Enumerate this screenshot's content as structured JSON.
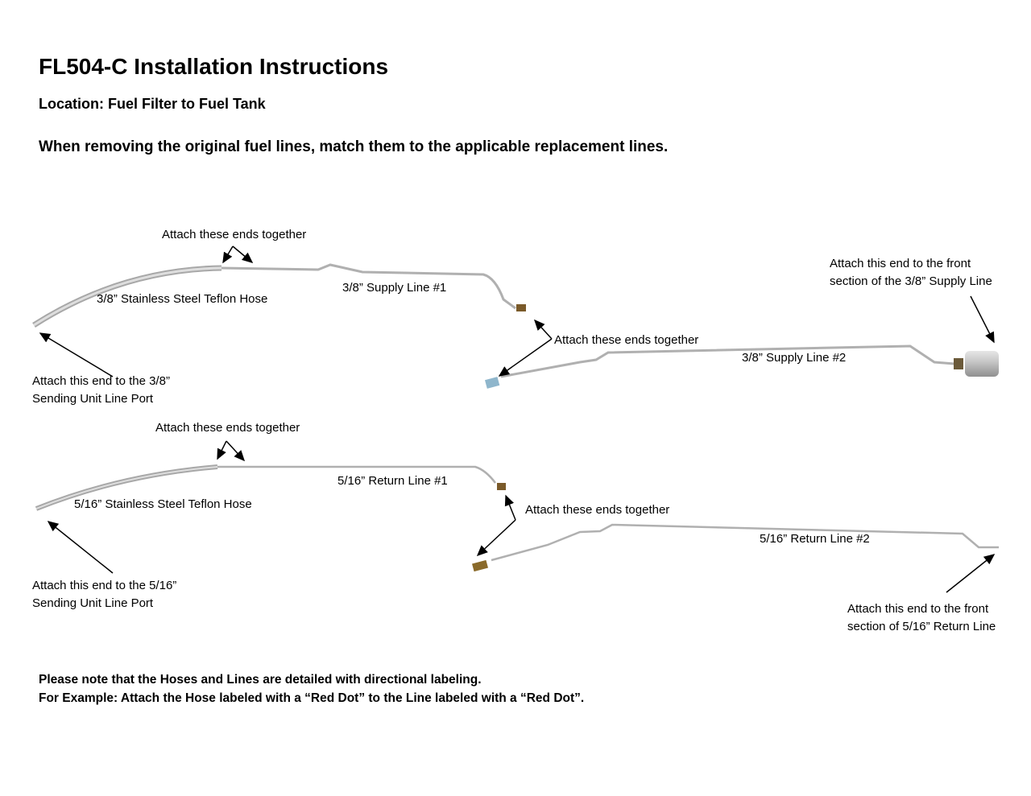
{
  "header": {
    "title": "FL504-C Installation Instructions",
    "location": "Location: Fuel Filter to Fuel Tank",
    "instruction": "When removing the original fuel lines, match them to the applicable replacement lines."
  },
  "supply": {
    "attach_together_1": "Attach these ends together",
    "hose_label": "3/8” Stainless Steel Teflon Hose",
    "line1_label": "3/8” Supply Line #1",
    "front_note": [
      "Attach this end to the front",
      "section of the 3/8” Supply Line"
    ],
    "attach_together_2": "Attach these ends together",
    "line2_label": "3/8” Supply Line #2",
    "port_note": [
      "Attach this end to the 3/8”",
      "Sending Unit Line Port"
    ]
  },
  "return": {
    "attach_together_1": "Attach these ends together",
    "line1_label": "5/16” Return Line #1",
    "hose_label": "5/16” Stainless Steel Teflon Hose",
    "attach_together_2": "Attach these ends together",
    "line2_label": "5/16” Return Line #2",
    "port_note": [
      "Attach this end to the 5/16”",
      "Sending Unit Line Port"
    ],
    "front_note": [
      "Attach this end to the front",
      "section of 5/16” Return Line"
    ]
  },
  "notes": [
    "Please note that the Hoses and Lines are detailed with directional labeling.",
    "For Example: Attach the Hose labeled with a “Red Dot” to the Line labeled with a “Red Dot”."
  ]
}
